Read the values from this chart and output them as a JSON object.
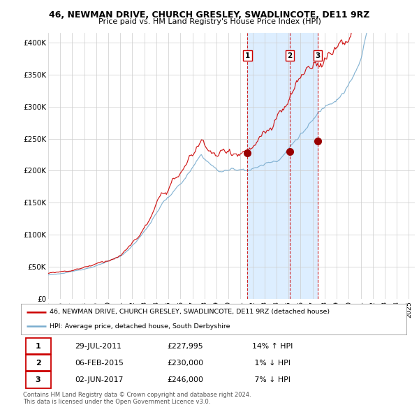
{
  "title_line1": "46, NEWMAN DRIVE, CHURCH GRESLEY, SWADLINCOTE, DE11 9RZ",
  "title_line2": "Price paid vs. HM Land Registry's House Price Index (HPI)",
  "ytick_labels": [
    "£0",
    "£50K",
    "£100K",
    "£150K",
    "£200K",
    "£250K",
    "£300K",
    "£350K",
    "£400K"
  ],
  "ytick_values": [
    0,
    50000,
    100000,
    150000,
    200000,
    250000,
    300000,
    350000,
    400000
  ],
  "ylim": [
    0,
    415000
  ],
  "xlim_start": 1995.0,
  "xlim_end": 2025.5,
  "xtick_years": [
    1995,
    1996,
    1997,
    1998,
    1999,
    2000,
    2001,
    2002,
    2003,
    2004,
    2005,
    2006,
    2007,
    2008,
    2009,
    2010,
    2011,
    2012,
    2013,
    2014,
    2015,
    2016,
    2017,
    2018,
    2019,
    2020,
    2021,
    2022,
    2023,
    2024,
    2025
  ],
  "line_color_red": "#cc0000",
  "line_color_blue": "#7aadcf",
  "shade_color": "#ddeeff",
  "vline_color": "#cc0000",
  "marker_color": "#990000",
  "transactions": [
    {
      "num": 1,
      "year": 2011.58,
      "price": 227995,
      "date": "29-JUL-2011",
      "pct": "14%",
      "dir": "↑"
    },
    {
      "num": 2,
      "year": 2015.09,
      "price": 230000,
      "date": "06-FEB-2015",
      "pct": "1%",
      "dir": "↓"
    },
    {
      "num": 3,
      "year": 2017.42,
      "price": 246000,
      "date": "02-JUN-2017",
      "pct": "7%",
      "dir": "↓"
    }
  ],
  "legend_line1": "46, NEWMAN DRIVE, CHURCH GRESLEY, SWADLINCOTE, DE11 9RZ (detached house)",
  "legend_line2": "HPI: Average price, detached house, South Derbyshire",
  "footer": "Contains HM Land Registry data © Crown copyright and database right 2024.\nThis data is licensed under the Open Government Licence v3.0.",
  "bg_color": "#ffffff",
  "grid_color": "#cccccc"
}
